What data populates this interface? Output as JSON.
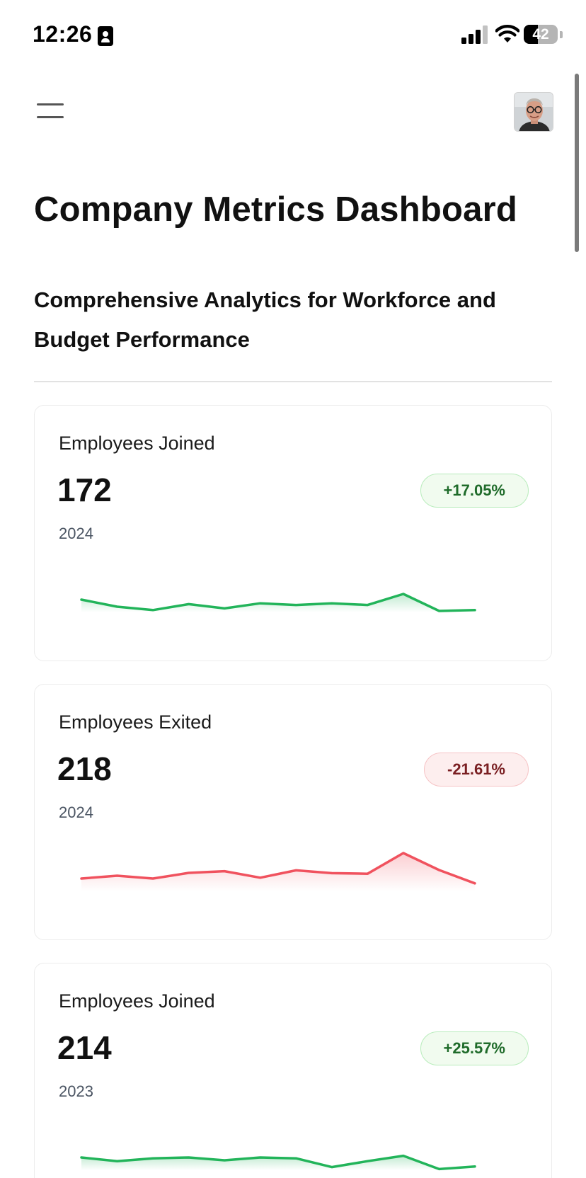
{
  "status_bar": {
    "time": "12:26",
    "battery": "42",
    "battery_level": 0.42
  },
  "header": {
    "menu_icon": "hamburger-menu-icon",
    "avatar": "user-avatar"
  },
  "page": {
    "title": "Company Metrics Dashboard",
    "subtitle": "Comprehensive Analytics for Workforce and Budget Performance"
  },
  "colors": {
    "positive": "#22b45a",
    "negative": "#f0525e"
  },
  "cards": [
    {
      "label": "Employees Joined",
      "value": "172",
      "year": "2024",
      "change": "+17.05%",
      "trend": "up",
      "spark": [
        14,
        11.5,
        10.3,
        12.4,
        10.9,
        12.7,
        12.1,
        12.7,
        12.1,
        16,
        10,
        10.3
      ]
    },
    {
      "label": "Employees Exited",
      "value": "218",
      "year": "2024",
      "change": "-21.61%",
      "trend": "down",
      "spark": [
        14,
        15,
        14,
        16,
        16.6,
        14.3,
        16.9,
        15.9,
        15.7,
        23,
        17,
        12.3
      ]
    },
    {
      "label": "Employees Joined",
      "value": "214",
      "year": "2023",
      "change": "+25.57%",
      "trend": "up",
      "spark": [
        14,
        12.7,
        13.7,
        14,
        13,
        14,
        13.7,
        10.6,
        12.7,
        14.6,
        9.9,
        10.8
      ]
    }
  ]
}
